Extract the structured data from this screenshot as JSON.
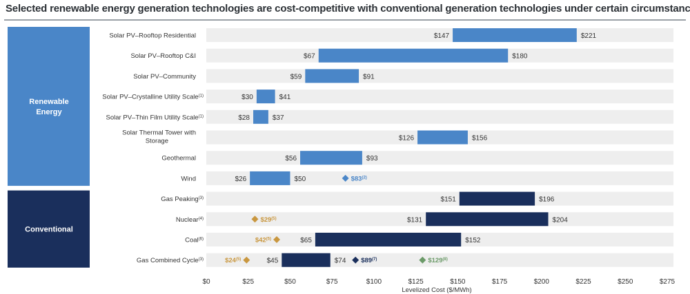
{
  "title": "Selected renewable energy generation technologies are cost-competitive with conventional generation technologies under certain circumstances",
  "chart_data": {
    "type": "bar",
    "orientation": "horizontal-range",
    "xlabel": "Levelized Cost ($/MWh)",
    "xlim": [
      0,
      275
    ],
    "xticks": [
      0,
      25,
      50,
      75,
      100,
      125,
      150,
      175,
      200,
      225,
      250,
      275
    ],
    "xtick_labels": [
      "$0",
      "$25",
      "$50",
      "$75",
      "$100",
      "$125",
      "$150",
      "$175",
      "$200",
      "$225",
      "$250",
      "$275"
    ],
    "groups": [
      {
        "label": "Renewable Energy",
        "color": "#4a86c8",
        "rows": [
          0,
          1,
          2,
          3,
          4,
          5,
          6,
          7
        ]
      },
      {
        "label": "Conventional",
        "color": "#1a2f5c",
        "rows": [
          8,
          9,
          10,
          11
        ]
      }
    ],
    "rows": [
      {
        "label": "Solar PV–Rooftop Residential",
        "group": "Renewable Energy",
        "low": 147,
        "high": 221,
        "low_label": "$147",
        "high_label": "$221"
      },
      {
        "label": "Solar PV–Rooftop C&I",
        "group": "Renewable Energy",
        "low": 67,
        "high": 180,
        "low_label": "$67",
        "high_label": "$180"
      },
      {
        "label": "Solar PV–Community",
        "group": "Renewable Energy",
        "low": 59,
        "high": 91,
        "low_label": "$59",
        "high_label": "$91"
      },
      {
        "label": "Solar PV–Crystalline Utility Scale",
        "sup": "(1)",
        "group": "Renewable Energy",
        "low": 30,
        "high": 41,
        "low_label": "$30",
        "high_label": "$41"
      },
      {
        "label": "Solar PV–Thin Film Utility Scale",
        "sup": "(1)",
        "group": "Renewable Energy",
        "low": 28,
        "high": 37,
        "low_label": "$28",
        "high_label": "$37"
      },
      {
        "label": "Solar Thermal Tower with",
        "label2": "Storage",
        "group": "Renewable Energy",
        "low": 126,
        "high": 156,
        "low_label": "$126",
        "high_label": "$156"
      },
      {
        "label": "Geothermal",
        "group": "Renewable Energy",
        "low": 56,
        "high": 93,
        "low_label": "$56",
        "high_label": "$93"
      },
      {
        "label": "Wind",
        "group": "Renewable Energy",
        "low": 26,
        "high": 50,
        "low_label": "$26",
        "high_label": "$50",
        "markers": [
          {
            "value": 83,
            "label": "$83",
            "sup": "(2)",
            "color": "#4a86c8"
          }
        ]
      },
      {
        "label": "Gas Peaking",
        "sup": "(3)",
        "group": "Conventional",
        "low": 151,
        "high": 196,
        "low_label": "$151",
        "high_label": "$196"
      },
      {
        "label": "Nuclear",
        "sup": "(4)",
        "group": "Conventional",
        "low": 131,
        "high": 204,
        "low_label": "$131",
        "high_label": "$204",
        "markers": [
          {
            "value": 29,
            "label": "$29",
            "sup": "(5)",
            "color": "#c9973f"
          }
        ]
      },
      {
        "label": "Coal",
        "sup": "(6)",
        "group": "Conventional",
        "low": 65,
        "high": 152,
        "low_label": "$65",
        "high_label": "$152",
        "markers": [
          {
            "value": 42,
            "label": "$42",
            "sup": "(5)",
            "color": "#c9973f",
            "label_side": "left"
          }
        ]
      },
      {
        "label": "Gas Combined Cycle",
        "sup": "(3)",
        "group": "Conventional",
        "low": 45,
        "high": 74,
        "low_label": "$45",
        "high_label": "$74",
        "markers": [
          {
            "value": 24,
            "label": "$24",
            "sup": "(5)",
            "color": "#c9973f",
            "label_side": "left"
          },
          {
            "value": 89,
            "label": "$89",
            "sup": "(7)",
            "color": "#1a2f5c"
          },
          {
            "value": 129,
            "label": "$129",
            "sup": "(8)",
            "color": "#6b9a68"
          }
        ]
      }
    ],
    "grid": false,
    "legend": "none"
  }
}
